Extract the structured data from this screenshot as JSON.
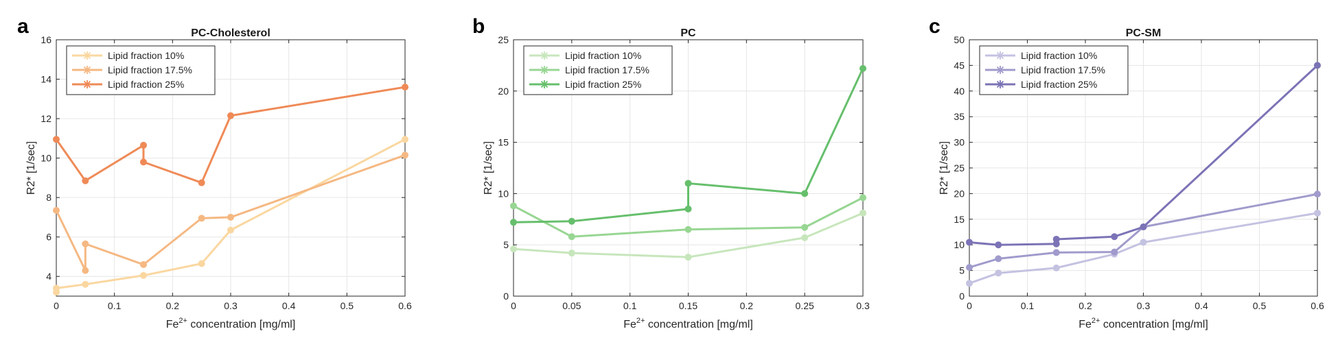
{
  "chart_data": [
    {
      "type": "line",
      "panel_letter": "a",
      "title": "PC-Cholesterol",
      "xlabel_main": "Fe",
      "xlabel_sup": "2+",
      "xlabel_rest": " concentration [mg/ml]",
      "ylabel": "R2* [1/sec]",
      "xlim": [
        0,
        0.6
      ],
      "ylim": [
        3,
        16
      ],
      "xticks": [
        0,
        0.1,
        0.2,
        0.3,
        0.4,
        0.5,
        0.6
      ],
      "xtick_labels": [
        "0",
        "0.1",
        "0.2",
        "0.3",
        "0.4",
        "0.5",
        "0.6"
      ],
      "yticks": [
        4,
        6,
        8,
        10,
        12,
        14,
        16
      ],
      "ytick_labels": [
        "4",
        "6",
        "8",
        "10",
        "12",
        "14",
        "16"
      ],
      "grid": true,
      "legend_position": "top-left",
      "series": [
        {
          "name": "Lipid fraction 10%",
          "color": "#fad7a0",
          "x": [
            0,
            0,
            0.05,
            0.15,
            0.25,
            0.3,
            0.6
          ],
          "y": [
            3.2,
            3.4,
            3.6,
            4.05,
            4.65,
            6.35,
            10.95
          ]
        },
        {
          "name": "Lipid fraction 17.5%",
          "color": "#f5b882",
          "x": [
            0,
            0.05,
            0.05,
            0.15,
            0.25,
            0.3,
            0.6
          ],
          "y": [
            7.35,
            4.3,
            5.65,
            4.6,
            6.95,
            7.0,
            10.15
          ]
        },
        {
          "name": "Lipid fraction 25%",
          "color": "#ef8a57",
          "x": [
            0,
            0.05,
            0.15,
            0.15,
            0.25,
            0.3,
            0.6
          ],
          "y": [
            10.95,
            8.85,
            10.65,
            9.8,
            8.75,
            12.15,
            13.6
          ]
        }
      ]
    },
    {
      "type": "line",
      "panel_letter": "b",
      "title": "PC",
      "xlabel_main": "Fe",
      "xlabel_sup": "2+",
      "xlabel_rest": " concentration [mg/ml]",
      "ylabel": "R2* [1/sec]",
      "xlim": [
        0,
        0.3
      ],
      "ylim": [
        0,
        25
      ],
      "xticks": [
        0,
        0.05,
        0.1,
        0.15,
        0.2,
        0.25,
        0.3
      ],
      "xtick_labels": [
        "0",
        "0.05",
        "0.1",
        "0.15",
        "0.2",
        "0.25",
        "0.3"
      ],
      "yticks": [
        0,
        5,
        10,
        15,
        20,
        25
      ],
      "ytick_labels": [
        "0",
        "5",
        "10",
        "15",
        "20",
        "25"
      ],
      "grid": true,
      "legend_position": "top-left",
      "series": [
        {
          "name": "Lipid fraction 10%",
          "color": "#c7e6bc",
          "x": [
            0,
            0.05,
            0.15,
            0.25,
            0.3
          ],
          "y": [
            4.6,
            4.2,
            3.8,
            5.7,
            8.1
          ]
        },
        {
          "name": "Lipid fraction 17.5%",
          "color": "#98d693",
          "x": [
            0,
            0.05,
            0.15,
            0.25,
            0.3
          ],
          "y": [
            8.8,
            5.8,
            6.5,
            6.7,
            9.6
          ]
        },
        {
          "name": "Lipid fraction 25%",
          "color": "#66bf6c",
          "x": [
            0,
            0.05,
            0.15,
            0.15,
            0.25,
            0.3
          ],
          "y": [
            7.2,
            7.3,
            8.5,
            11.0,
            10.0,
            22.2
          ]
        }
      ]
    },
    {
      "type": "line",
      "panel_letter": "c",
      "title": "PC-SM",
      "xlabel_main": "Fe",
      "xlabel_sup": "2+",
      "xlabel_rest": " concentration [mg/ml]",
      "ylabel": "R2* [1/sec]",
      "xlim": [
        0,
        0.6
      ],
      "ylim": [
        0,
        50
      ],
      "xticks": [
        0,
        0.1,
        0.2,
        0.3,
        0.4,
        0.5,
        0.6
      ],
      "xtick_labels": [
        "0",
        "0.1",
        "0.2",
        "0.3",
        "0.4",
        "0.5",
        "0.6"
      ],
      "yticks": [
        0,
        5,
        10,
        15,
        20,
        25,
        30,
        35,
        40,
        45,
        50
      ],
      "ytick_labels": [
        "0",
        "5",
        "10",
        "15",
        "20",
        "25",
        "30",
        "35",
        "40",
        "45",
        "50"
      ],
      "grid": true,
      "legend_position": "top-left",
      "series": [
        {
          "name": "Lipid fraction 10%",
          "color": "#c4c2e1",
          "x": [
            0,
            0.05,
            0.15,
            0.25,
            0.3,
            0.6
          ],
          "y": [
            2.5,
            4.5,
            5.5,
            8.2,
            10.5,
            16.2
          ]
        },
        {
          "name": "Lipid fraction 17.5%",
          "color": "#a09bcc",
          "x": [
            0,
            0.05,
            0.15,
            0.25,
            0.3,
            0.6
          ],
          "y": [
            5.6,
            7.3,
            8.5,
            8.6,
            13.5,
            19.9
          ]
        },
        {
          "name": "Lipid fraction 25%",
          "color": "#7b73b6",
          "x": [
            0,
            0.05,
            0.15,
            0.15,
            0.25,
            0.3,
            0.6
          ],
          "y": [
            10.5,
            10.0,
            10.2,
            11.1,
            11.6,
            13.5,
            45.0
          ]
        }
      ]
    }
  ]
}
